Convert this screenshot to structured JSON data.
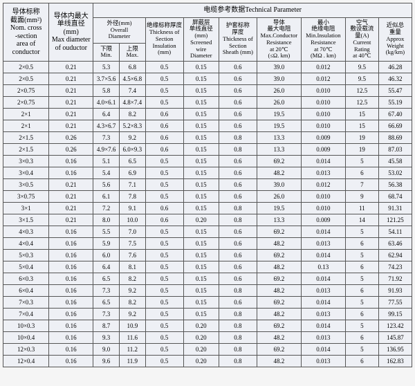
{
  "headers": {
    "h1": "导体标称\n截面(mm²)\nNom. cross\n-section\narea of\nconductor",
    "h2": "导体内最大\n单线直径\n(mm)\nMax diameter\nof ouductor",
    "tech": "电缆参考数据Technical Parameter",
    "h3": "外径(mm)\nOverall\nDiameter",
    "h3a": "下限\nMin.",
    "h3b": "上限\nMax.",
    "h4": "绝缘标称厚度\nThickness of\nSection\nInsulation\n(mm)",
    "h5": "屏蔽层\n单线直径\n(mm)\nScreened\nwire\nDiameter",
    "h6": "护套标称\n厚度\nThickness of\nSection\nSheath (mm)",
    "h7": "导体\n最大电阻\nMax.Conductor\nResistance\nat 20℃\n(≤Ω. km)",
    "h8": "最小\n绝缘电阻\nMin.Insulation\nResistance\nat 70℃\n(MΩ . km)",
    "h9": "空气\n敷设载流\n量(A)\nCurrent\nRating\nat 40℃",
    "h10": "近似总\n重量\nApprox\nWeight\n(kg/km)"
  },
  "rows": [
    [
      "2×0.5",
      "0.21",
      "5.3",
      "6.8",
      "0.5",
      "0.15",
      "0.6",
      "39.0",
      "0.012",
      "9.5",
      "46.28"
    ],
    [
      "2×0.5",
      "0.21",
      "3.7×5.6",
      "4.5×6.8",
      "0.5",
      "0.15",
      "0.6",
      "39.0",
      "0.012",
      "9.5",
      "46.32"
    ],
    [
      "2×0.75",
      "0.21",
      "5.8",
      "7.4",
      "0.5",
      "0.15",
      "0.6",
      "26.0",
      "0.010",
      "12.5",
      "55.47"
    ],
    [
      "2×0.75",
      "0.21",
      "4.0×6.1",
      "4.8×7.4",
      "0.5",
      "0.15",
      "0.6",
      "26.0",
      "0.010",
      "12.5",
      "55.19"
    ],
    [
      "2×1",
      "0.21",
      "6.4",
      "8.2",
      "0.6",
      "0.15",
      "0.6",
      "19.5",
      "0.010",
      "15",
      "67.40"
    ],
    [
      "2×1",
      "0.21",
      "4.3×6.7",
      "5.2×8.3",
      "0.6",
      "0.15",
      "0.6",
      "19.5",
      "0.010",
      "15",
      "66.69"
    ],
    [
      "2×1.5",
      "0.26",
      "7.3",
      "9.2",
      "0.6",
      "0.15",
      "0.8",
      "13.3",
      "0.009",
      "19",
      "88.69"
    ],
    [
      "2×1.5",
      "0.26",
      "4.9×7.6",
      "6.0×9.3",
      "0.6",
      "0.15",
      "0.8",
      "13.3",
      "0.009",
      "19",
      "87.03"
    ],
    [
      "3×0.3",
      "0.16",
      "5.1",
      "6.5",
      "0.5",
      "0.15",
      "0.6",
      "69.2",
      "0.014",
      "5",
      "45.58"
    ],
    [
      "3×0.4",
      "0.16",
      "5.4",
      "6.9",
      "0.5",
      "0.15",
      "0.6",
      "48.2",
      "0.013",
      "6",
      "53.02"
    ],
    [
      "3×0.5",
      "0.21",
      "5.6",
      "7.1",
      "0.5",
      "0.15",
      "0.6",
      "39.0",
      "0.012",
      "7",
      "56.38"
    ],
    [
      "3×0.75",
      "0.21",
      "6.1",
      "7.8",
      "0.5",
      "0.15",
      "0.6",
      "26.0",
      "0.010",
      "9",
      "68.74"
    ],
    [
      "3×1",
      "0.21",
      "7.2",
      "9.1",
      "0.6",
      "0.15",
      "0.8",
      "19.5",
      "0.010",
      "11",
      "91.31"
    ],
    [
      "3×1.5",
      "0.21",
      "8.0",
      "10.0",
      "0.6",
      "0.20",
      "0.8",
      "13.3",
      "0.009",
      "14",
      "121.25"
    ],
    [
      "4×0.3",
      "0.16",
      "5.5",
      "7.0",
      "0.5",
      "0.15",
      "0.6",
      "69.2",
      "0.014",
      "5",
      "54.11"
    ],
    [
      "4×0.4",
      "0.16",
      "5.9",
      "7.5",
      "0.5",
      "0.15",
      "0.6",
      "48.2",
      "0.013",
      "6",
      "63.46"
    ],
    [
      "5×0.3",
      "0.16",
      "6.0",
      "7.6",
      "0.5",
      "0.15",
      "0.6",
      "69.2",
      "0.014",
      "5",
      "62.94"
    ],
    [
      "5×0.4",
      "0.16",
      "6.4",
      "8.1",
      "0.5",
      "0.15",
      "0.6",
      "48.2",
      "0.13",
      "6",
      "74.23"
    ],
    [
      "6×0.3",
      "0.16",
      "6.5",
      "8.2",
      "0.5",
      "0.15",
      "0.6",
      "69.2",
      "0.014",
      "5",
      "71.92"
    ],
    [
      "6×0.4",
      "0.16",
      "7.3",
      "9.2",
      "0.5",
      "0.15",
      "0.8",
      "48.2",
      "0.013",
      "6",
      "91.93"
    ],
    [
      "7×0.3",
      "0.16",
      "6.5",
      "8.2",
      "0.5",
      "0.15",
      "0.6",
      "69.2",
      "0.014",
      "5",
      "77.55"
    ],
    [
      "7×0.4",
      "0.16",
      "7.3",
      "9.2",
      "0.5",
      "0.15",
      "0.8",
      "48.2",
      "0.013",
      "6",
      "99.15"
    ],
    [
      "10×0.3",
      "0.16",
      "8.7",
      "10.9",
      "0.5",
      "0.20",
      "0.8",
      "69.2",
      "0.014",
      "5",
      "123.42"
    ],
    [
      "10×0.4",
      "0.16",
      "9.3",
      "11.6",
      "0.5",
      "0.20",
      "0.8",
      "48.2",
      "0.013",
      "6",
      "145.87"
    ],
    [
      "12×0.3",
      "0.16",
      "9.0",
      "11.2",
      "0.5",
      "0.20",
      "0.8",
      "69.2",
      "0.014",
      "5",
      "136.95"
    ],
    [
      "12×0.4",
      "0.16",
      "9.6",
      "11.9",
      "0.5",
      "0.20",
      "0.8",
      "48.2",
      "0.013",
      "6",
      "162.83"
    ]
  ]
}
